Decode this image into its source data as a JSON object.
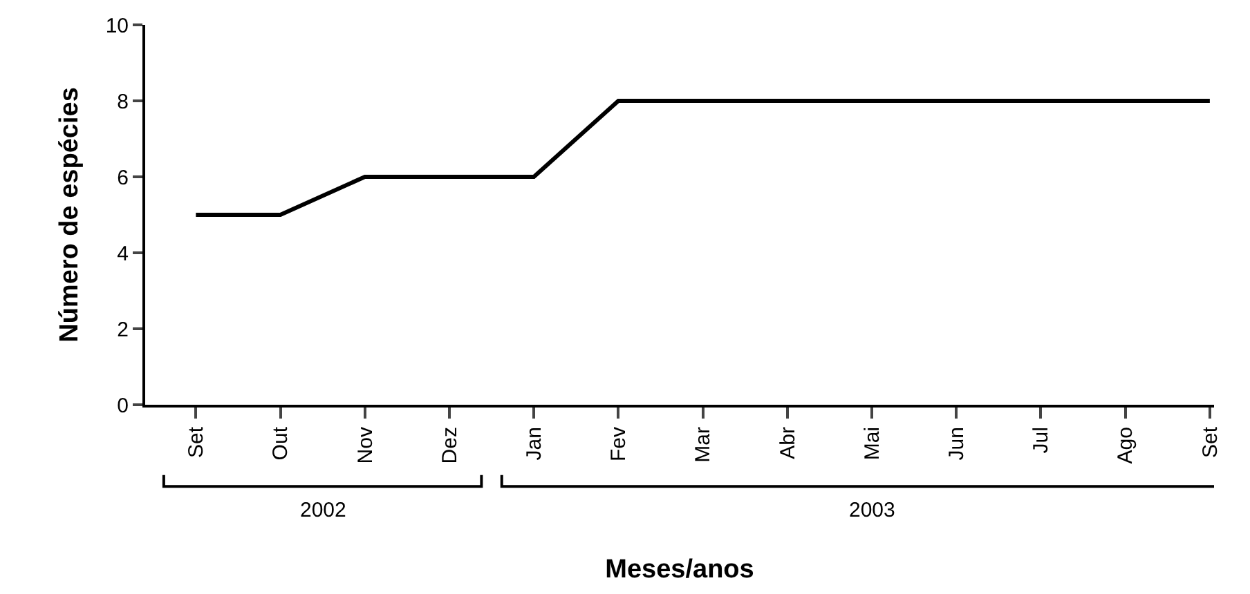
{
  "chart_data": {
    "type": "line",
    "xlabel": "Meses/anos",
    "ylabel": "Número de espécies",
    "categories": [
      "Set",
      "Out",
      "Nov",
      "Dez",
      "Jan",
      "Fev",
      "Mar",
      "Abr",
      "Mai",
      "Jun",
      "Jul",
      "Ago",
      "Set"
    ],
    "series": [
      {
        "color": "#000000",
        "values": [
          5,
          5,
          6,
          6,
          6,
          8,
          8,
          8,
          8,
          8,
          8,
          8,
          8
        ]
      }
    ],
    "ylim": [
      0,
      10
    ],
    "yticks": [
      0,
      2,
      4,
      6,
      8,
      10
    ],
    "grid": false,
    "marker": "none",
    "line_style": "solid",
    "annotations": [
      "2002",
      "2003"
    ]
  }
}
